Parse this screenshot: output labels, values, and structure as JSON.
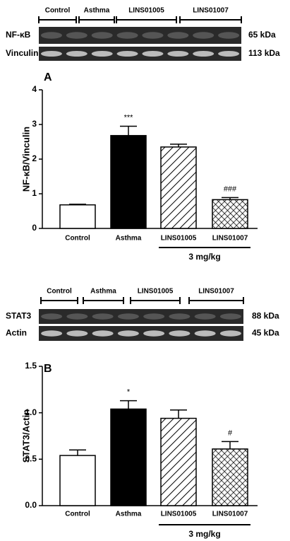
{
  "chart_data": [
    {
      "type": "bar",
      "panel_label": "A",
      "ylabel": "NF-κB/Vinculin",
      "categories": [
        "Control",
        "Asthma",
        "LINS01005",
        "LINS01007"
      ],
      "values": [
        0.68,
        2.68,
        2.35,
        0.83
      ],
      "errors": [
        0.02,
        0.27,
        0.08,
        0.06
      ],
      "annotations": [
        null,
        "***",
        null,
        "###"
      ],
      "colors": [
        "#ffffff",
        "#000000",
        "#ffffff",
        "#ffffff"
      ],
      "patterns": [
        "none",
        "solid",
        "hatch",
        "crosshatch"
      ],
      "group_label": "3 mg/kg",
      "ylim": [
        0,
        4
      ],
      "yticks": [
        0,
        1,
        2,
        3,
        4
      ],
      "blot": {
        "groups": [
          "Control",
          "Asthma",
          "LINS01005",
          "LINS01007"
        ],
        "rows": [
          {
            "label": "NF-κB",
            "kda": "65 kDa"
          },
          {
            "label": "Vinculin",
            "kda": "113 kDa"
          }
        ]
      }
    },
    {
      "type": "bar",
      "panel_label": "B",
      "ylabel": "STAT3/Actin",
      "categories": [
        "Control",
        "Asthma",
        "LINS01005",
        "LINS01007"
      ],
      "values": [
        0.54,
        1.04,
        0.94,
        0.61
      ],
      "errors": [
        0.06,
        0.09,
        0.09,
        0.08
      ],
      "annotations": [
        null,
        "*",
        null,
        "#"
      ],
      "colors": [
        "#ffffff",
        "#000000",
        "#ffffff",
        "#ffffff"
      ],
      "patterns": [
        "none",
        "solid",
        "hatch",
        "crosshatch"
      ],
      "group_label": "3 mg/kg",
      "ylim": [
        0,
        1.5
      ],
      "yticks": [
        {
          "value": 0,
          "label": "0.0"
        },
        0.5,
        {
          "value": 1,
          "label": "1.0"
        },
        1.5
      ],
      "blot": {
        "groups": [
          "Control",
          "Asthma",
          "LINS01005",
          "LINS01007"
        ],
        "rows": [
          {
            "label": "STAT3",
            "kda": "88 kDa"
          },
          {
            "label": "Actin",
            "kda": "45 kDa"
          }
        ]
      }
    }
  ]
}
